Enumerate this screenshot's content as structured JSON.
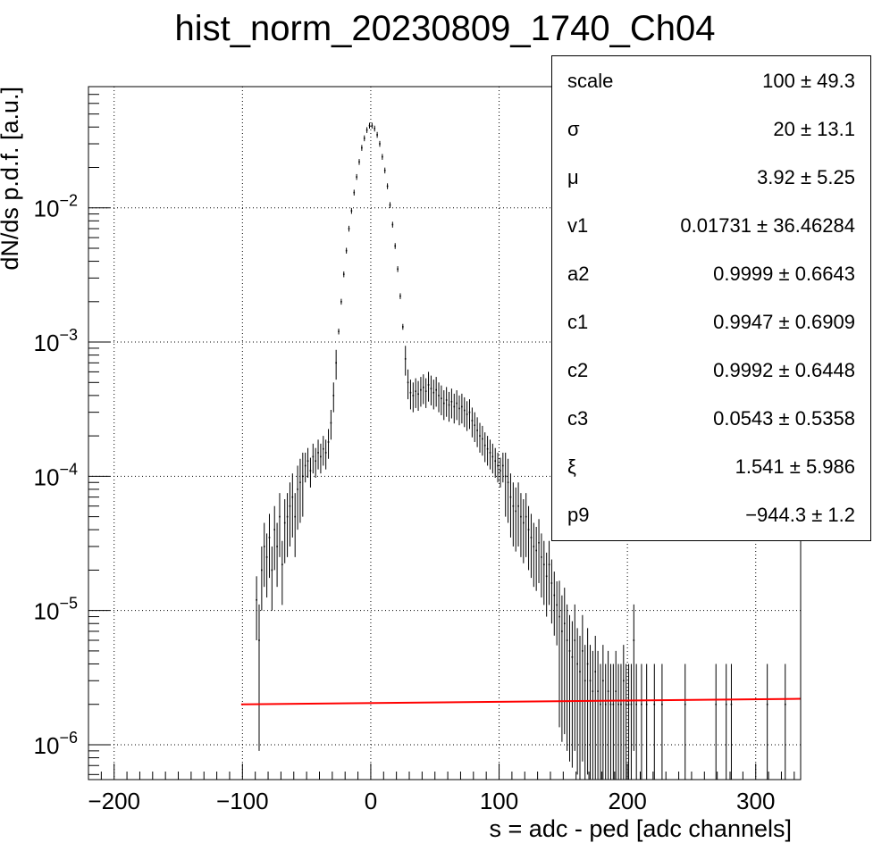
{
  "chart_data": {
    "type": "scatter",
    "title": "hist_norm_20230809_1740_Ch04",
    "xlabel": "s = adc - ped [adc channels]",
    "ylabel": "dN/ds p.d.f. [a.u.]",
    "xlim": [
      -220,
      335
    ],
    "ylim": [
      5.5e-07,
      0.08
    ],
    "yscale": "log",
    "grid": true,
    "x_ticks": [
      -200,
      -100,
      0,
      100,
      200,
      300
    ],
    "x_tick_labels": [
      "−200",
      "−100",
      "0",
      "100",
      "200",
      "300"
    ],
    "y_ticks": [
      1e-06,
      1e-05,
      0.0001,
      0.001,
      0.01
    ],
    "y_tick_labels": [
      {
        "base": "10",
        "exp": "−6"
      },
      {
        "base": "10",
        "exp": "−5"
      },
      {
        "base": "10",
        "exp": "−4"
      },
      {
        "base": "10",
        "exp": "−3"
      },
      {
        "base": "10",
        "exp": "−2"
      }
    ],
    "series": [
      {
        "kind": "histogram-points",
        "color": "#000000",
        "points": [
          [
            -89,
            1.2e-05
          ],
          [
            -87,
            6e-06
          ],
          [
            -85,
            2e-05
          ],
          [
            -83,
            3e-05
          ],
          [
            -81,
            2.5e-05
          ],
          [
            -79,
            3.5e-05
          ],
          [
            -77,
            2e-05
          ],
          [
            -75,
            4e-05
          ],
          [
            -73,
            3e-05
          ],
          [
            -71,
            5e-05
          ],
          [
            -69,
            2.2e-05
          ],
          [
            -67,
            4.5e-05
          ],
          [
            -65,
            5e-05
          ],
          [
            -63,
            6e-05
          ],
          [
            -61,
            7e-05
          ],
          [
            -59,
            5e-05
          ],
          [
            -57,
            8e-05
          ],
          [
            -55,
            9e-05
          ],
          [
            -53,
            0.0001
          ],
          [
            -51,
            0.00012
          ],
          [
            -49,
            0.00013
          ],
          [
            -47,
            0.00011
          ],
          [
            -45,
            0.00014
          ],
          [
            -43,
            0.00013
          ],
          [
            -41,
            0.00015
          ],
          [
            -39,
            0.00014
          ],
          [
            -37,
            0.00016
          ],
          [
            -35,
            0.00015
          ],
          [
            -33,
            0.00018
          ],
          [
            -31,
            0.00025
          ],
          [
            -29,
            0.0004
          ],
          [
            -27,
            0.0007
          ],
          [
            -25,
            0.0012
          ],
          [
            -23,
            0.002
          ],
          [
            -21,
            0.0032
          ],
          [
            -19,
            0.0048
          ],
          [
            -17,
            0.007
          ],
          [
            -15,
            0.0095
          ],
          [
            -13,
            0.013
          ],
          [
            -11,
            0.017
          ],
          [
            -9,
            0.022
          ],
          [
            -7,
            0.028
          ],
          [
            -5,
            0.033
          ],
          [
            -3,
            0.038
          ],
          [
            -1,
            0.041
          ],
          [
            1,
            0.041
          ],
          [
            3,
            0.039
          ],
          [
            5,
            0.035
          ],
          [
            7,
            0.03
          ],
          [
            9,
            0.024
          ],
          [
            11,
            0.019
          ],
          [
            13,
            0.0145
          ],
          [
            15,
            0.0105
          ],
          [
            17,
            0.0075
          ],
          [
            19,
            0.0052
          ],
          [
            21,
            0.0035
          ],
          [
            23,
            0.0022
          ],
          [
            25,
            0.0013
          ],
          [
            27,
            0.00075
          ],
          [
            29,
            0.0005
          ],
          [
            31,
            0.00042
          ],
          [
            33,
            0.0004
          ],
          [
            35,
            0.00043
          ],
          [
            37,
            0.00041
          ],
          [
            39,
            0.00044
          ],
          [
            41,
            0.00046
          ],
          [
            43,
            0.00043
          ],
          [
            45,
            0.00048
          ],
          [
            47,
            0.00045
          ],
          [
            49,
            0.00042
          ],
          [
            51,
            0.00044
          ],
          [
            53,
            0.0004
          ],
          [
            55,
            0.00038
          ],
          [
            57,
            0.00035
          ],
          [
            59,
            0.00037
          ],
          [
            61,
            0.00034
          ],
          [
            63,
            0.00036
          ],
          [
            65,
            0.00033
          ],
          [
            67,
            0.00035
          ],
          [
            69,
            0.00032
          ],
          [
            71,
            0.00033
          ],
          [
            73,
            0.00031
          ],
          [
            75,
            0.00029
          ],
          [
            77,
            0.0003
          ],
          [
            79,
            0.00026
          ],
          [
            81,
            0.00024
          ],
          [
            83,
            0.00022
          ],
          [
            85,
            0.0002
          ],
          [
            87,
            0.00019
          ],
          [
            89,
            0.00017
          ],
          [
            91,
            0.00016
          ],
          [
            93,
            0.00015
          ],
          [
            95,
            0.00014
          ],
          [
            97,
            0.00013
          ],
          [
            99,
            0.00012
          ],
          [
            101,
            0.00011
          ],
          [
            103,
            0.00012
          ],
          [
            105,
            0.0001
          ],
          [
            107,
            9e-05
          ],
          [
            109,
            7e-05
          ],
          [
            111,
            6e-05
          ],
          [
            113,
            5.5e-05
          ],
          [
            115,
            6e-05
          ],
          [
            117,
            5e-05
          ],
          [
            119,
            4.5e-05
          ],
          [
            121,
            5e-05
          ],
          [
            123,
            4e-05
          ],
          [
            125,
            3.5e-05
          ],
          [
            127,
            3e-05
          ],
          [
            129,
            2.8e-05
          ],
          [
            131,
            3.2e-05
          ],
          [
            133,
            2.5e-05
          ],
          [
            135,
            2.2e-05
          ],
          [
            137,
            1.8e-05
          ],
          [
            139,
            2.2e-05
          ],
          [
            141,
            1.6e-05
          ],
          [
            143,
            1.3e-05
          ],
          [
            145,
            1.1e-05
          ],
          [
            147,
            9e-06
          ],
          [
            149,
            7e-06
          ],
          [
            151,
            8e-06
          ],
          [
            153,
            6e-06
          ],
          [
            155,
            5e-06
          ],
          [
            157,
            4.5e-06
          ],
          [
            159,
            6e-06
          ],
          [
            161,
            4e-06
          ],
          [
            163,
            3.5e-06
          ],
          [
            165,
            5e-06
          ],
          [
            167,
            3e-06
          ],
          [
            169,
            4e-06
          ],
          [
            171,
            3e-06
          ],
          [
            173,
            2.5e-06
          ],
          [
            175,
            3.5e-06
          ],
          [
            177,
            2.5e-06
          ],
          [
            179,
            2e-06
          ],
          [
            181,
            3e-06
          ],
          [
            183,
            2e-06
          ],
          [
            185,
            2.5e-06
          ],
          [
            187,
            2e-06
          ],
          [
            189,
            2e-06
          ],
          [
            191,
            2.5e-06
          ],
          [
            193,
            2e-06
          ],
          [
            195,
            2e-06
          ],
          [
            197,
            3e-06
          ],
          [
            199,
            2e-06
          ],
          [
            201,
            2e-06
          ],
          [
            203,
            2e-06
          ],
          [
            205,
            6e-06
          ],
          [
            207,
            2e-06
          ],
          [
            211,
            2e-06
          ],
          [
            215,
            2e-06
          ],
          [
            221,
            2e-06
          ],
          [
            227,
            2e-06
          ],
          [
            245,
            2e-06
          ],
          [
            269,
            2e-06
          ],
          [
            277,
            2e-06
          ],
          [
            281,
            2e-06
          ],
          [
            309,
            2e-06
          ],
          [
            323,
            2e-06
          ]
        ]
      },
      {
        "kind": "fit-line",
        "color": "#ff0000",
        "x": [
          -101,
          335
        ],
        "values": [
          2e-06,
          2.2e-06
        ]
      }
    ],
    "stats_box": {
      "rows": [
        {
          "name": "scale",
          "value": "100 ± 49.3"
        },
        {
          "name": "σ",
          "value": "20 ± 13.1"
        },
        {
          "name": "μ",
          "value": "3.92 ± 5.25"
        },
        {
          "name": "v1",
          "value": "0.01731 ± 36.46284"
        },
        {
          "name": "a2",
          "value": "0.9999 ± 0.6643"
        },
        {
          "name": "c1",
          "value": "0.9947 ± 0.6909"
        },
        {
          "name": "c2",
          "value": "0.9992 ± 0.6448"
        },
        {
          "name": "c3",
          "value": "0.0543 ± 0.5358"
        },
        {
          "name": "ξ",
          "value": "1.541 ± 5.986"
        },
        {
          "name": "p9",
          "value": "−944.3 ± 1.2"
        }
      ]
    }
  }
}
